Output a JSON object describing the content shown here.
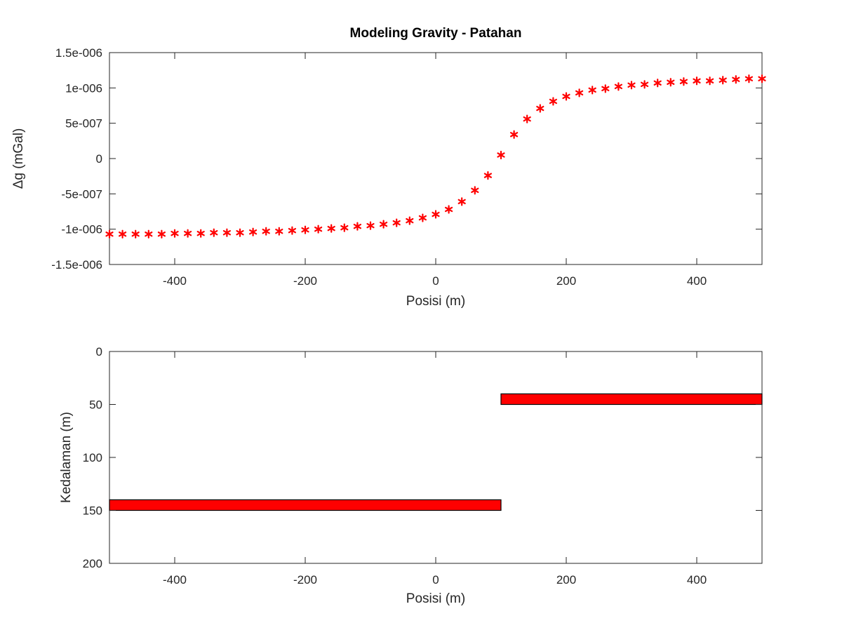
{
  "chart_data": [
    {
      "type": "scatter",
      "title": "Modeling Gravity - Patahan",
      "xlabel": "Posisi (m)",
      "ylabel": "Δg (mGal)",
      "xlim": [
        -500,
        500
      ],
      "ylim": [
        -1.5e-06,
        1.5e-06
      ],
      "xticks": [
        -400,
        -200,
        0,
        200,
        400
      ],
      "yticks": [
        -1.5e-06,
        -1e-06,
        -5e-07,
        0,
        5e-07,
        1e-06,
        1.5e-06
      ],
      "xtick_labels": [
        "-400",
        "-200",
        "0",
        "200",
        "400"
      ],
      "ytick_labels": [
        "-1.5e-006",
        "-1e-006",
        "-5e-007",
        "0",
        "5e-007",
        "1e-006",
        "1.5e-006"
      ],
      "marker": "*",
      "color": "#ff0000",
      "x": [
        -500,
        -480,
        -460,
        -440,
        -420,
        -400,
        -380,
        -360,
        -340,
        -320,
        -300,
        -280,
        -260,
        -240,
        -220,
        -200,
        -180,
        -160,
        -140,
        -120,
        -100,
        -80,
        -60,
        -40,
        -20,
        0,
        20,
        40,
        60,
        80,
        100,
        120,
        140,
        160,
        180,
        200,
        220,
        240,
        260,
        280,
        300,
        320,
        340,
        360,
        380,
        400,
        420,
        440,
        460,
        480,
        500
      ],
      "y": [
        -1.07e-06,
        -1.07e-06,
        -1.07e-06,
        -1.07e-06,
        -1.07e-06,
        -1.06e-06,
        -1.06e-06,
        -1.06e-06,
        -1.05e-06,
        -1.05e-06,
        -1.05e-06,
        -1.04e-06,
        -1.03e-06,
        -1.03e-06,
        -1.02e-06,
        -1.01e-06,
        -1e-06,
        -9.9e-07,
        -9.8e-07,
        -9.6e-07,
        -9.5e-07,
        -9.3e-07,
        -9.1e-07,
        -8.8e-07,
        -8.4e-07,
        -7.9e-07,
        -7.2e-07,
        -6.1e-07,
        -4.5e-07,
        -2.4e-07,
        5e-08,
        3.4e-07,
        5.6e-07,
        7.1e-07,
        8.1e-07,
        8.8e-07,
        9.3e-07,
        9.7e-07,
        9.9e-07,
        1.02e-06,
        1.04e-06,
        1.05e-06,
        1.07e-06,
        1.08e-06,
        1.09e-06,
        1.1e-06,
        1.1e-06,
        1.11e-06,
        1.12e-06,
        1.13e-06,
        1.13e-06
      ]
    },
    {
      "type": "bar",
      "xlabel": "Posisi (m)",
      "ylabel": "Kedalaman (m)",
      "xlim": [
        -500,
        500
      ],
      "ylim": [
        0,
        200
      ],
      "y_reversed": true,
      "xticks": [
        -400,
        -200,
        0,
        200,
        400
      ],
      "yticks": [
        0,
        50,
        100,
        150,
        200
      ],
      "xtick_labels": [
        "-400",
        "-200",
        "0",
        "200",
        "400"
      ],
      "ytick_labels": [
        "0",
        "50",
        "100",
        "150",
        "200"
      ],
      "color": "#ff0000",
      "blocks": [
        {
          "x0": -500,
          "x1": 100,
          "top": 140,
          "bottom": 150
        },
        {
          "x0": 100,
          "x1": 500,
          "top": 40,
          "bottom": 50
        }
      ]
    }
  ]
}
